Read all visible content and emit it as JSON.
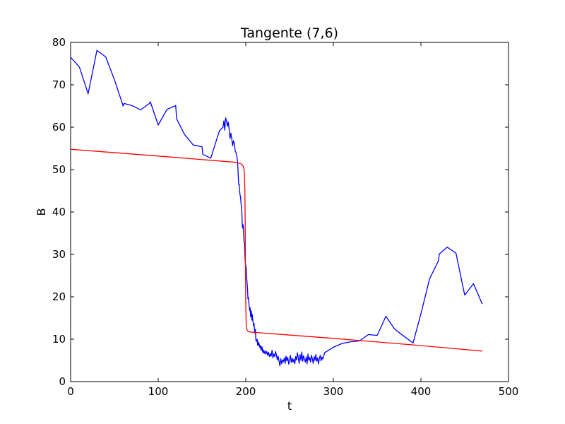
{
  "chart_data": {
    "type": "line",
    "title": "Tangente (7,6)",
    "xlabel": "t",
    "ylabel": "B",
    "xlim": [
      0,
      500
    ],
    "ylim": [
      0,
      80
    ],
    "xticks": [
      0,
      100,
      200,
      300,
      400,
      500
    ],
    "yticks": [
      0,
      10,
      20,
      30,
      40,
      50,
      60,
      70,
      80
    ],
    "grid": false,
    "legend": "none",
    "series": [
      {
        "color": "#0000ff",
        "x": [
          0,
          10,
          20,
          30,
          40,
          50,
          60,
          61,
          70,
          80,
          90,
          91,
          100,
          110,
          120,
          121,
          130,
          140,
          150,
          151,
          160,
          170,
          174,
          175,
          176,
          177,
          178,
          179,
          180,
          181,
          182,
          183,
          184,
          185,
          186,
          187,
          188,
          189,
          190,
          190.5,
          191,
          191.5,
          192,
          192.5,
          193,
          193.5,
          194,
          194.5,
          195,
          195.5,
          196,
          196.5,
          197,
          197.5,
          198,
          198.5,
          199,
          199.5,
          200,
          200.5,
          201,
          201.5,
          202,
          202.5,
          203,
          203.5,
          204,
          204.5,
          205,
          205.5,
          206,
          206.5,
          207,
          207.5,
          208,
          208.5,
          209,
          209.5,
          210,
          210.5,
          211,
          211.5,
          212,
          212.5,
          213,
          213.5,
          214,
          214.5,
          215,
          215.5,
          216,
          216.5,
          217,
          217.5,
          218,
          218.5,
          219,
          219.5,
          220,
          221,
          222,
          223,
          224,
          225,
          226,
          227,
          228,
          229,
          230,
          231,
          232,
          233,
          234,
          235,
          236,
          237,
          238,
          239,
          240,
          241,
          242,
          243,
          244,
          245,
          246,
          247,
          248,
          249,
          250,
          251,
          252,
          253,
          254,
          255,
          256,
          257,
          258,
          259,
          260,
          261,
          262,
          263,
          264,
          265,
          266,
          267,
          268,
          269,
          270,
          271,
          272,
          273,
          274,
          275,
          276,
          277,
          278,
          279,
          280,
          281,
          282,
          283,
          284,
          285,
          286,
          287,
          288,
          289,
          290,
          300,
          310,
          320,
          330,
          340,
          350,
          360,
          370,
          380,
          391,
          400,
          410,
          420,
          421,
          430,
          440,
          450,
          460,
          470
        ],
        "y": [
          76.5,
          74.2,
          67.9,
          78.1,
          76.6,
          71.2,
          65.0,
          65.6,
          65.1,
          64.1,
          65.6,
          66.0,
          60.5,
          64.2,
          65.1,
          62.0,
          58.3,
          55.8,
          55.4,
          53.6,
          52.7,
          59.2,
          60.0,
          61.5,
          59.3,
          62.2,
          61.6,
          60.2,
          61.2,
          59.6,
          57.3,
          58.6,
          57.3,
          55.6,
          56.8,
          56.1,
          54.3,
          54.0,
          52.9,
          52.0,
          50.5,
          48.1,
          46.4,
          46.5,
          44.9,
          44.0,
          43.5,
          42.3,
          41.2,
          40.1,
          36.8,
          36.2,
          37.0,
          35.1,
          33.0,
          32.8,
          29.9,
          27.8,
          27.4,
          26.8,
          24.5,
          23.4,
          21.9,
          19.5,
          19.9,
          18.6,
          17.7,
          16.7,
          17.4,
          15.3,
          16.7,
          16.2,
          14.5,
          15.8,
          14.4,
          13.8,
          13.1,
          13.7,
          12.0,
          11.4,
          12.3,
          9.8,
          9.5,
          9.7,
          10.0,
          8.6,
          9.4,
          8.5,
          9.1,
          8.7,
          8.2,
          7.9,
          8.5,
          7.4,
          7.7,
          8.2,
          7.3,
          6.9,
          7.5,
          6.6,
          7.3,
          6.5,
          7.1,
          6.2,
          6.9,
          5.9,
          6.6,
          6.0,
          7.4,
          5.6,
          6.5,
          5.9,
          7.1,
          6.3,
          5.1,
          6.0,
          4.8,
          3.7,
          5.4,
          4.2,
          5.1,
          4.7,
          5.6,
          4.3,
          6.0,
          4.9,
          5.7,
          4.1,
          5.0,
          6.2,
          4.5,
          5.5,
          4.6,
          5.3,
          4.2,
          5.9,
          5.1,
          6.8,
          5.5,
          4.3,
          6.4,
          5.0,
          7.0,
          4.8,
          6.1,
          5.3,
          4.6,
          5.8,
          4.2,
          6.5,
          5.0,
          5.7,
          4.6,
          6.2,
          5.4,
          4.3,
          5.9,
          5.0,
          6.4,
          4.8,
          5.6,
          4.2,
          5.4,
          6.2,
          4.9,
          5.8,
          5.3,
          6.0,
          6.8,
          8.1,
          9.0,
          9.4,
          9.6,
          11.1,
          10.9,
          15.4,
          12.4,
          10.8,
          9.1,
          16.0,
          24.3,
          28.5,
          30.1,
          31.7,
          30.3,
          20.4,
          23.1,
          18.3
        ]
      },
      {
        "color": "#ff0000",
        "x": [
          0,
          100,
          190,
          195,
          197,
          198,
          198.5,
          199,
          199.3,
          199.6,
          200,
          200.4,
          200.7,
          201,
          201.5,
          202,
          203,
          205,
          210,
          300,
          400,
          470
        ],
        "y": [
          54.8,
          53.2,
          51.7,
          51.3,
          50.8,
          50.1,
          48.8,
          45.0,
          38.0,
          28.0,
          18.0,
          14.0,
          12.9,
          12.5,
          12.2,
          12.0,
          11.8,
          11.7,
          11.6,
          10.2,
          8.5,
          7.2
        ]
      }
    ]
  }
}
